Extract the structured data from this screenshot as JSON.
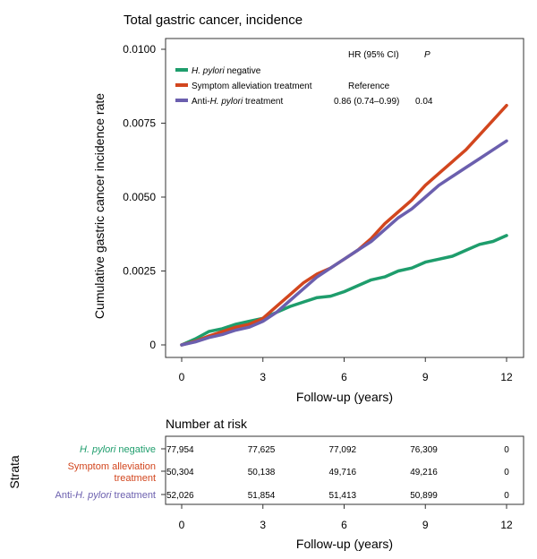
{
  "chart_data": [
    {
      "type": "line",
      "title": "Total gastric cancer, incidence",
      "xlabel": "Follow-up (years)",
      "ylabel": "Cumulative gastric cancer incidence rate",
      "xlim": [
        0,
        12
      ],
      "ylim": [
        0,
        0.01
      ],
      "x_ticks": [
        "0",
        "3",
        "6",
        "9",
        "12"
      ],
      "y_ticks": [
        "0",
        "0.0025",
        "0.0050",
        "0.0075",
        "0.0100"
      ],
      "grid": false,
      "legend_position": "top-left",
      "legend_header": {
        "hr": "HR (95% CI)",
        "p": "P"
      },
      "series": [
        {
          "name": "H. pylori negative",
          "color": "#1e9d6c",
          "hr": "",
          "p": "",
          "x": [
            0,
            0.5,
            1,
            1.5,
            2,
            2.5,
            3,
            3.5,
            4,
            4.5,
            5,
            5.5,
            6,
            6.5,
            7,
            7.5,
            8,
            8.5,
            9,
            9.5,
            10,
            10.5,
            11,
            11.5,
            12
          ],
          "y": [
            0,
            0.0002,
            0.00045,
            0.00055,
            0.0007,
            0.0008,
            0.0009,
            0.0011,
            0.0013,
            0.00145,
            0.0016,
            0.00165,
            0.0018,
            0.002,
            0.0022,
            0.0023,
            0.0025,
            0.0026,
            0.0028,
            0.0029,
            0.003,
            0.0032,
            0.0034,
            0.0035,
            0.0037
          ]
        },
        {
          "name": "Symptom alleviation treatment",
          "color": "#d2461e",
          "hr": "Reference",
          "p": "",
          "x": [
            0,
            0.5,
            1,
            1.5,
            2,
            2.5,
            3,
            3.5,
            4,
            4.5,
            5,
            5.5,
            6,
            6.5,
            7,
            7.5,
            8,
            8.5,
            9,
            9.5,
            10,
            10.5,
            11,
            11.5,
            12
          ],
          "y": [
            0,
            0.00012,
            0.0003,
            0.00045,
            0.0006,
            0.0007,
            0.0009,
            0.0013,
            0.0017,
            0.0021,
            0.0024,
            0.0026,
            0.0029,
            0.0032,
            0.0036,
            0.0041,
            0.0045,
            0.0049,
            0.0054,
            0.0058,
            0.0062,
            0.0066,
            0.0071,
            0.0076,
            0.0081
          ]
        },
        {
          "name": "Anti-H. pylori treatment",
          "color": "#6b5fae",
          "hr": "0.86 (0.74–0.99)",
          "p": "0.04",
          "x": [
            0,
            0.5,
            1,
            1.5,
            2,
            2.5,
            3,
            3.5,
            4,
            4.5,
            5,
            5.5,
            6,
            6.5,
            7,
            7.5,
            8,
            8.5,
            9,
            9.5,
            10,
            10.5,
            11,
            11.5,
            12
          ],
          "y": [
            0,
            0.0001,
            0.00025,
            0.00035,
            0.0005,
            0.0006,
            0.0008,
            0.0011,
            0.0015,
            0.0019,
            0.0023,
            0.0026,
            0.0029,
            0.0032,
            0.0035,
            0.0039,
            0.0043,
            0.0046,
            0.005,
            0.0054,
            0.0057,
            0.006,
            0.0063,
            0.0066,
            0.0069
          ]
        }
      ]
    },
    {
      "type": "table",
      "title": "Number at risk",
      "ylabel": "Strata",
      "xlabel": "Follow-up (years)",
      "x_ticks": [
        "0",
        "3",
        "6",
        "9",
        "12"
      ],
      "rows": [
        {
          "label": "H. pylori negative",
          "color": "#1e9d6c",
          "values": [
            "77,954",
            "77,625",
            "77,092",
            "76,309",
            "0"
          ]
        },
        {
          "label": "Symptom alleviation treatment",
          "color": "#d2461e",
          "values": [
            "50,304",
            "50,138",
            "49,716",
            "49,216",
            "0"
          ]
        },
        {
          "label": "Anti-H. pylori treatment",
          "color": "#6b5fae",
          "values": [
            "52,026",
            "51,854",
            "51,413",
            "50,899",
            "0"
          ]
        }
      ]
    }
  ]
}
